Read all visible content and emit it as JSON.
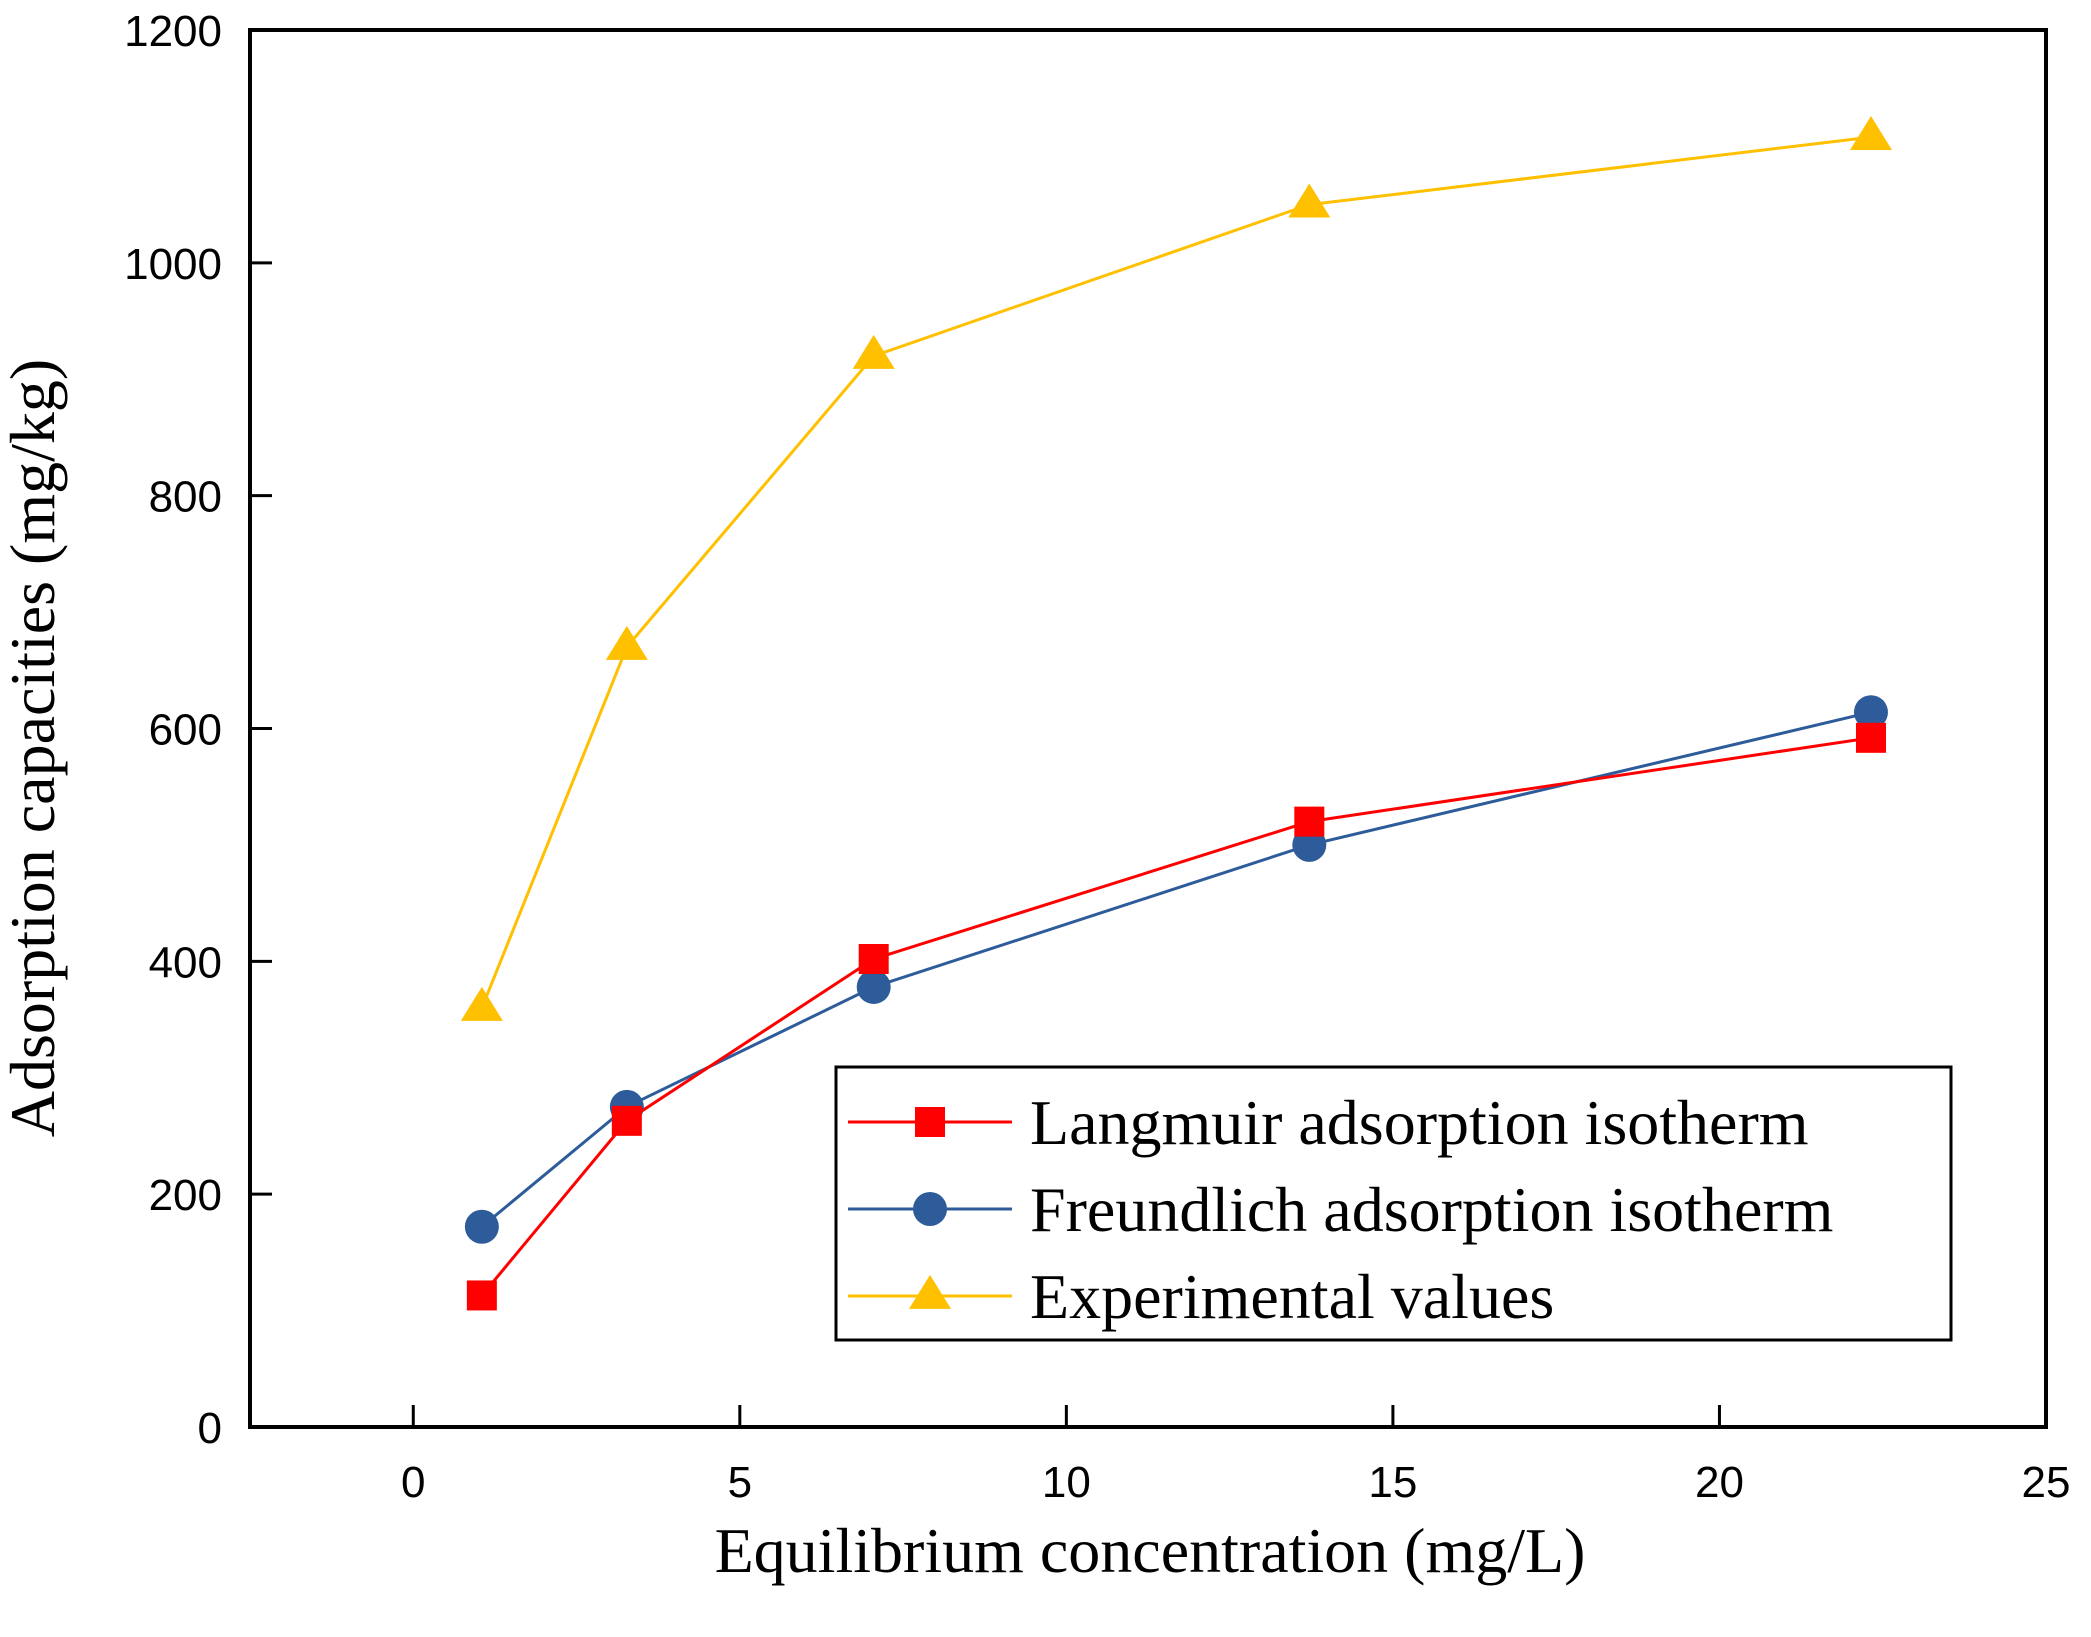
{
  "chart_data": {
    "type": "line",
    "title": "",
    "xlabel": "Equilibrium concentration (mg/L)",
    "ylabel": "Adsorption capacities (mg/kg)",
    "xlim": [
      -2.5,
      25
    ],
    "ylim": [
      0,
      1200
    ],
    "xticks": [
      0,
      5,
      10,
      15,
      20,
      25
    ],
    "yticks": [
      0,
      200,
      400,
      600,
      800,
      1000,
      1200
    ],
    "xtick_labels": [
      "0",
      "5",
      "10",
      "15",
      "20",
      "25"
    ],
    "ytick_labels": [
      "0",
      "200",
      "400",
      "600",
      "800",
      "1000",
      "1200"
    ],
    "grid": false,
    "legend_position": "bottom-right",
    "series": [
      {
        "name": "Langmuir adsorption isotherm",
        "marker": "square",
        "color": "#ff0000",
        "marker_color": "#ff0000",
        "x": [
          1.05,
          3.27,
          7.05,
          13.72,
          22.32
        ],
        "y": [
          113,
          263,
          402,
          520,
          592
        ]
      },
      {
        "name": "Freundlich adsorption isotherm",
        "marker": "circle",
        "color": "#2e5c9a",
        "marker_color": "#2e5c9a",
        "x": [
          1.05,
          3.27,
          7.05,
          13.72,
          22.32
        ],
        "y": [
          172,
          275,
          378,
          500,
          614
        ]
      },
      {
        "name": "Experimental values",
        "marker": "triangle",
        "color": "#ffc000",
        "marker_color": "#ffc000",
        "x": [
          1.05,
          3.27,
          7.05,
          13.72,
          22.32
        ],
        "y": [
          360,
          670,
          920,
          1050,
          1108
        ]
      }
    ]
  }
}
